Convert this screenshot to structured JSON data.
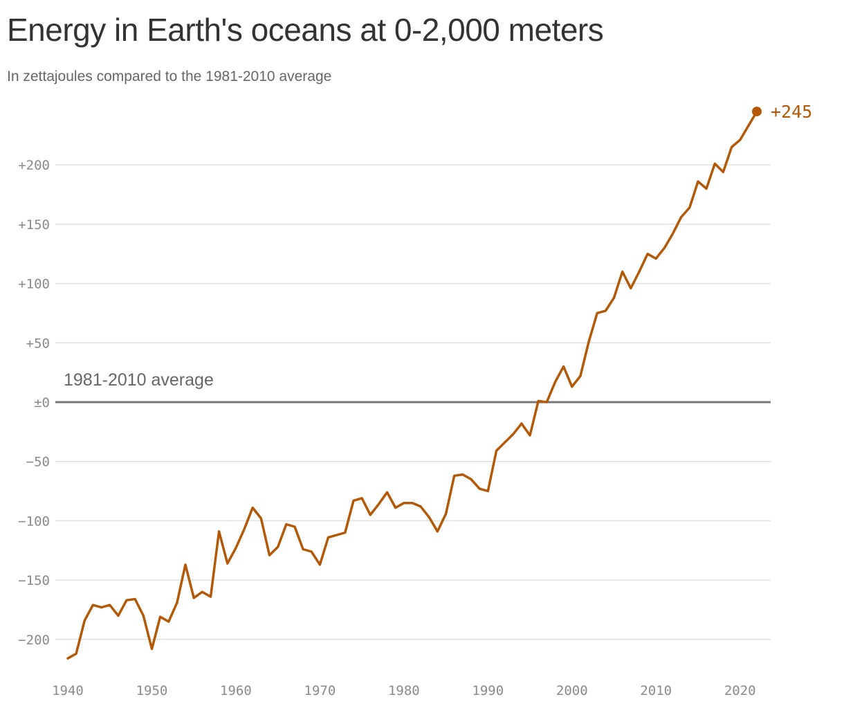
{
  "title": "Energy in Earth's oceans at 0-2,000 meters",
  "subtitle": "In zettajoules compared to the 1981-2010 average",
  "chart_data": {
    "type": "line",
    "title": "Energy in Earth's oceans at 0-2,000 meters",
    "subtitle": "In zettajoules compared to the 1981-2010 average",
    "xlabel": "",
    "ylabel": "",
    "xlim": [
      1940,
      2022
    ],
    "ylim": [
      -220,
      250
    ],
    "x_ticks": [
      1940,
      1950,
      1960,
      1970,
      1980,
      1990,
      2000,
      2010,
      2020
    ],
    "y_ticks": [
      {
        "value": 200,
        "label": "+200"
      },
      {
        "value": 150,
        "label": "+150"
      },
      {
        "value": 100,
        "label": "+100"
      },
      {
        "value": 50,
        "label": "+50"
      },
      {
        "value": 0,
        "label": "±0"
      },
      {
        "value": -50,
        "label": "−50"
      },
      {
        "value": -100,
        "label": "−100"
      },
      {
        "value": -150,
        "label": "−150"
      },
      {
        "value": -200,
        "label": "−200"
      }
    ],
    "grid": true,
    "baseline": {
      "value": 0,
      "label": "1981-2010 average"
    },
    "end_label": "+245",
    "colors": {
      "line": "#b35806",
      "baseline": "#777777",
      "grid": "#e0e0e0"
    },
    "x": [
      1940,
      1941,
      1942,
      1943,
      1944,
      1945,
      1946,
      1947,
      1948,
      1949,
      1950,
      1951,
      1952,
      1953,
      1954,
      1955,
      1956,
      1957,
      1958,
      1959,
      1960,
      1961,
      1962,
      1963,
      1964,
      1965,
      1966,
      1967,
      1968,
      1969,
      1970,
      1971,
      1972,
      1973,
      1974,
      1975,
      1976,
      1977,
      1978,
      1979,
      1980,
      1981,
      1982,
      1983,
      1984,
      1985,
      1986,
      1987,
      1988,
      1989,
      1990,
      1991,
      1992,
      1993,
      1994,
      1995,
      1996,
      1997,
      1998,
      1999,
      2000,
      2001,
      2002,
      2003,
      2004,
      2005,
      2006,
      2007,
      2008,
      2009,
      2010,
      2011,
      2012,
      2013,
      2014,
      2015,
      2016,
      2017,
      2018,
      2019,
      2020,
      2021,
      2022
    ],
    "series": [
      {
        "values": [
          -216,
          -212,
          -184,
          -171,
          -173,
          -171,
          -180,
          -167,
          -166,
          -180,
          -208,
          -181,
          -185,
          -169,
          -137,
          -165,
          -160,
          -164,
          -109,
          -136,
          -123,
          -107,
          -89,
          -98,
          -129,
          -122,
          -103,
          -105,
          -124,
          -126,
          -137,
          -114,
          -112,
          -110,
          -83,
          -81,
          -95,
          -86,
          -76,
          -89,
          -85,
          -85,
          -88,
          -97,
          -109,
          -94,
          -62,
          -61,
          -65,
          -73,
          -75,
          -41,
          -34,
          -27,
          -18,
          -28,
          1,
          0,
          17,
          30,
          13,
          22,
          51,
          75,
          77,
          88,
          110,
          96,
          110,
          125,
          121,
          130,
          142,
          156,
          164,
          186,
          180,
          201,
          194,
          215,
          221,
          233,
          245
        ]
      }
    ]
  }
}
